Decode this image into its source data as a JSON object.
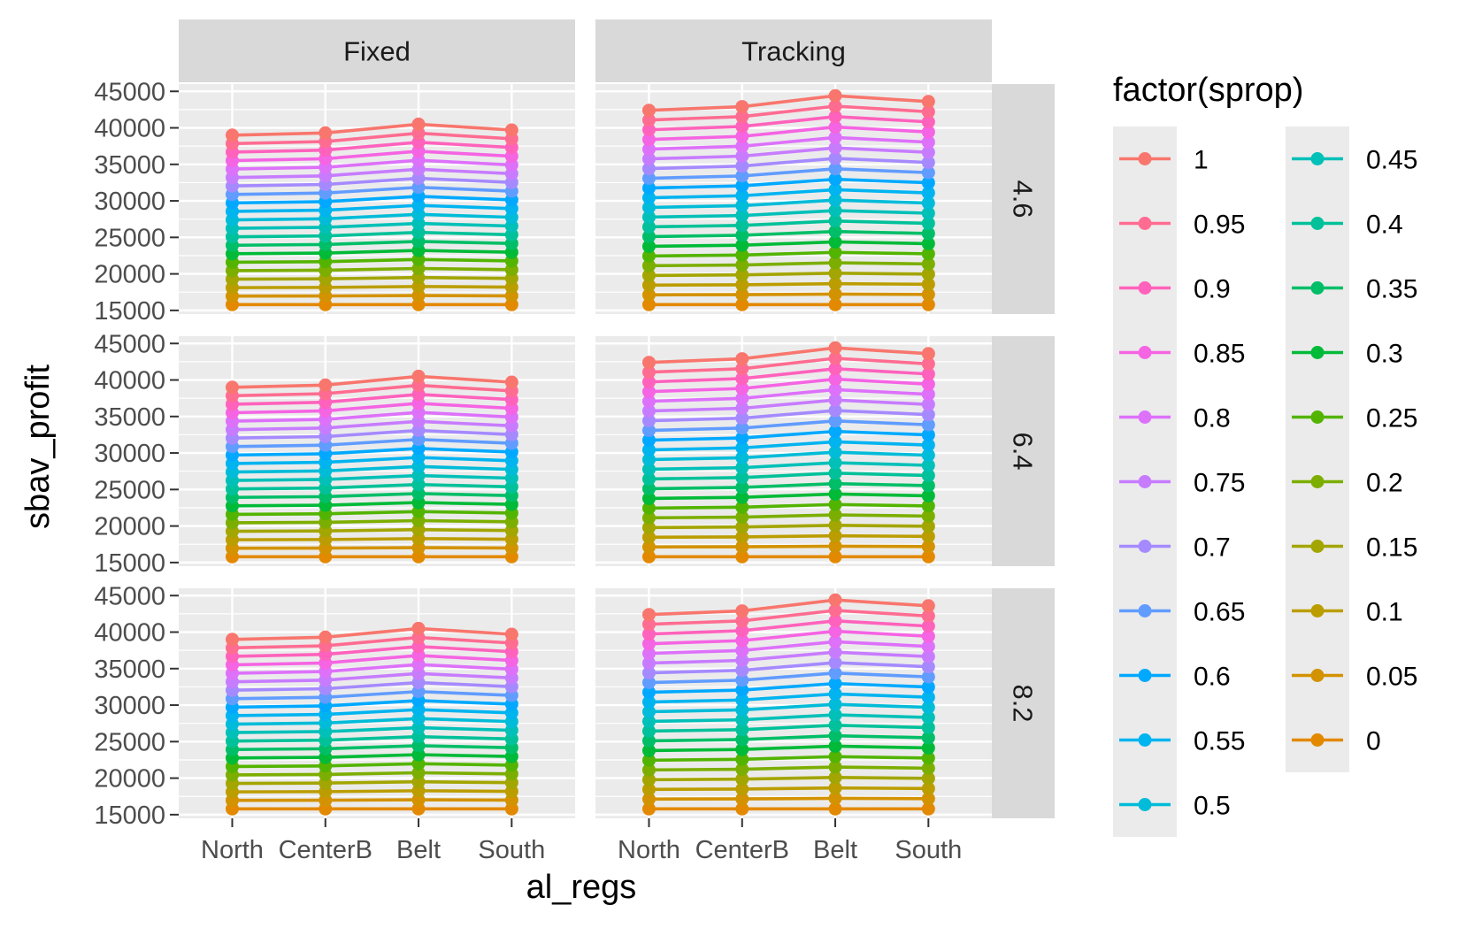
{
  "chart_data": {
    "type": "line",
    "xlabel": "al_regs",
    "ylabel": "sbav_profit",
    "categories": [
      "North",
      "CenterB",
      "Belt",
      "South"
    ],
    "ylim": [
      14500,
      46000
    ],
    "yticks": [
      15000,
      20000,
      25000,
      30000,
      35000,
      40000,
      45000
    ],
    "facet_cols": [
      "Fixed",
      "Tracking"
    ],
    "facet_rows": [
      "4.6",
      "6.4",
      "8.2"
    ],
    "legend": {
      "title": "factor(sprop)",
      "position": "right",
      "entries": [
        "1",
        "0.95",
        "0.9",
        "0.85",
        "0.8",
        "0.75",
        "0.7",
        "0.65",
        "0.6",
        "0.55",
        "0.5",
        "0.45",
        "0.4",
        "0.35",
        "0.3",
        "0.25",
        "0.2",
        "0.15",
        "0.1",
        "0.05",
        "0"
      ]
    },
    "series_colors": {
      "1": "#F8766D",
      "0.95": "#FF6C91",
      "0.9": "#FF62BC",
      "0.85": "#F564E3",
      "0.8": "#DD71FA",
      "0.75": "#C77CFF",
      "0.7": "#A58AFF",
      "0.65": "#619CFF",
      "0.6": "#00A9FF",
      "0.55": "#00B4F0",
      "0.5": "#00BCD8",
      "0.45": "#00C0B8",
      "0.4": "#00C19A",
      "0.35": "#00BE67",
      "0.3": "#00BA38",
      "0.25": "#53B400",
      "0.2": "#7CAE00",
      "0.15": "#A3A500",
      "0.1": "#BB9D00",
      "0.05": "#D39200",
      "0": "#E38900"
    },
    "grid": true,
    "note_values": "profit values identical across the three facet rows",
    "panels": {
      "Fixed": {
        "max": [
          39000,
          39300,
          40500,
          39700
        ],
        "min": [
          15800,
          15800,
          15800,
          15800
        ]
      },
      "Tracking": {
        "max": [
          42400,
          42900,
          44400,
          43600
        ],
        "min": [
          15800,
          15800,
          15800,
          15800
        ]
      }
    }
  }
}
